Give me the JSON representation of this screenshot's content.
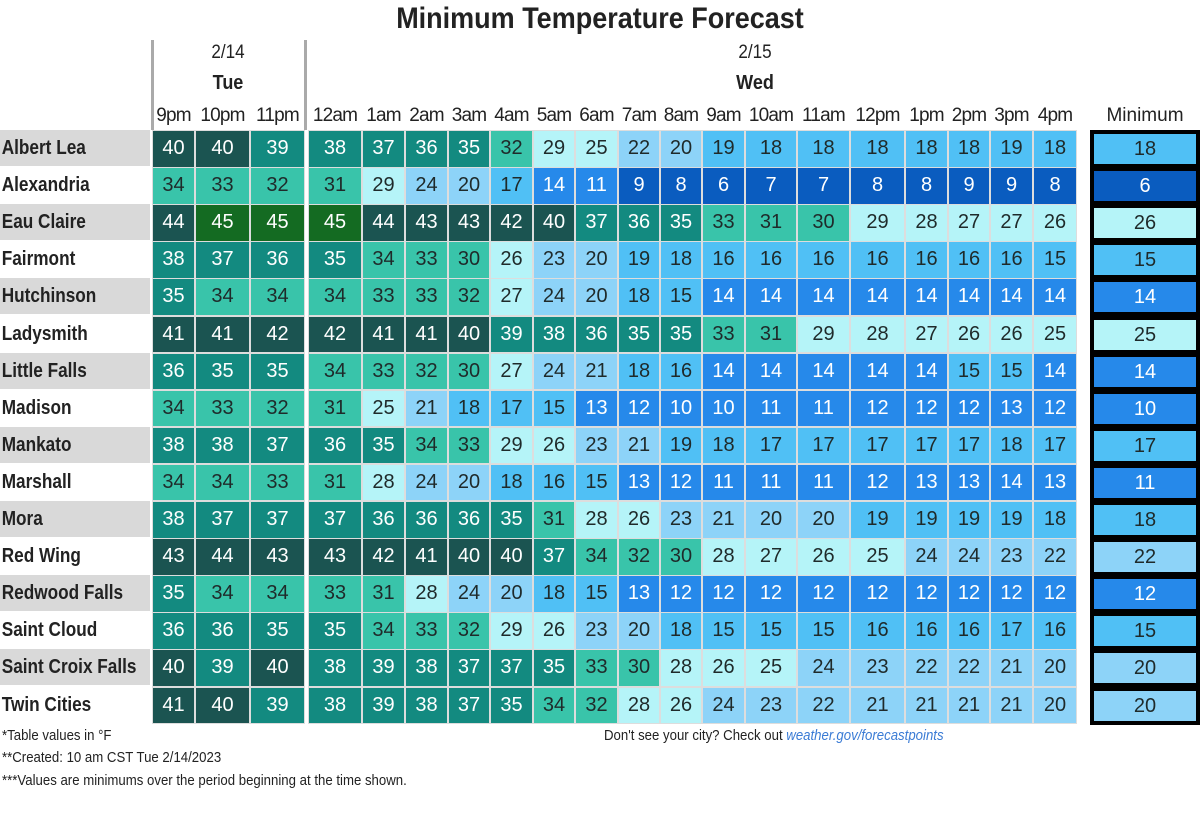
{
  "chart_data": {
    "type": "heatmap",
    "title": "Minimum Temperature Forecast",
    "dates": [
      {
        "date": "2/14",
        "day": "Tue"
      },
      {
        "date": "2/15",
        "day": "Wed"
      }
    ],
    "columns": [
      "9pm",
      "10pm",
      "11pm",
      "12am",
      "1am",
      "2am",
      "3am",
      "4am",
      "5am",
      "6am",
      "7am",
      "8am",
      "9am",
      "10am",
      "11am",
      "12pm",
      "1pm",
      "2pm",
      "3pm",
      "4pm"
    ],
    "minimum_header": "Minimum",
    "rows": [
      {
        "city": "Albert Lea",
        "values": [
          40,
          40,
          39,
          38,
          37,
          36,
          35,
          32,
          29,
          25,
          22,
          20,
          19,
          18,
          18,
          18,
          18,
          18,
          19,
          18
        ],
        "minimum": 18
      },
      {
        "city": "Alexandria",
        "values": [
          34,
          33,
          32,
          31,
          29,
          24,
          20,
          17,
          14,
          11,
          9,
          8,
          6,
          7,
          7,
          8,
          8,
          9,
          9,
          8
        ],
        "minimum": 6
      },
      {
        "city": "Eau Claire",
        "values": [
          44,
          45,
          45,
          45,
          44,
          43,
          43,
          42,
          40,
          37,
          36,
          35,
          33,
          31,
          30,
          29,
          28,
          27,
          27,
          26
        ],
        "minimum": 26
      },
      {
        "city": "Fairmont",
        "values": [
          38,
          37,
          36,
          35,
          34,
          33,
          30,
          26,
          23,
          20,
          19,
          18,
          16,
          16,
          16,
          16,
          16,
          16,
          16,
          15
        ],
        "minimum": 15
      },
      {
        "city": "Hutchinson",
        "values": [
          35,
          34,
          34,
          34,
          33,
          33,
          32,
          27,
          24,
          20,
          18,
          15,
          14,
          14,
          14,
          14,
          14,
          14,
          14,
          14
        ],
        "minimum": 14
      },
      {
        "city": "Ladysmith",
        "values": [
          41,
          41,
          42,
          42,
          41,
          41,
          40,
          39,
          38,
          36,
          35,
          35,
          33,
          31,
          29,
          28,
          27,
          26,
          26,
          25
        ],
        "minimum": 25
      },
      {
        "city": "Little Falls",
        "values": [
          36,
          35,
          35,
          34,
          33,
          32,
          30,
          27,
          24,
          21,
          18,
          16,
          14,
          14,
          14,
          14,
          14,
          15,
          15,
          14
        ],
        "minimum": 14
      },
      {
        "city": "Madison",
        "values": [
          34,
          33,
          32,
          31,
          25,
          21,
          18,
          17,
          15,
          13,
          12,
          10,
          10,
          11,
          11,
          12,
          12,
          12,
          13,
          12
        ],
        "minimum": 10
      },
      {
        "city": "Mankato",
        "values": [
          38,
          38,
          37,
          36,
          35,
          34,
          33,
          29,
          26,
          23,
          21,
          19,
          18,
          17,
          17,
          17,
          17,
          17,
          18,
          17
        ],
        "minimum": 17
      },
      {
        "city": "Marshall",
        "values": [
          34,
          34,
          33,
          31,
          28,
          24,
          20,
          18,
          16,
          15,
          13,
          12,
          11,
          11,
          11,
          12,
          13,
          13,
          14,
          13
        ],
        "minimum": 11
      },
      {
        "city": "Mora",
        "values": [
          38,
          37,
          37,
          37,
          36,
          36,
          36,
          35,
          31,
          28,
          26,
          23,
          21,
          20,
          20,
          19,
          19,
          19,
          19,
          18
        ],
        "minimum": 18
      },
      {
        "city": "Red Wing",
        "values": [
          43,
          44,
          43,
          43,
          42,
          41,
          40,
          40,
          37,
          34,
          32,
          30,
          28,
          27,
          26,
          25,
          24,
          24,
          23,
          22
        ],
        "minimum": 22
      },
      {
        "city": "Redwood Falls",
        "values": [
          35,
          34,
          34,
          33,
          31,
          28,
          24,
          20,
          18,
          15,
          13,
          12,
          12,
          12,
          12,
          12,
          12,
          12,
          12,
          12
        ],
        "minimum": 12
      },
      {
        "city": "Saint Cloud",
        "values": [
          36,
          36,
          35,
          35,
          34,
          33,
          32,
          29,
          26,
          23,
          20,
          18,
          15,
          15,
          15,
          16,
          16,
          16,
          17,
          16
        ],
        "minimum": 15
      },
      {
        "city": "Saint Croix Falls",
        "values": [
          40,
          39,
          40,
          38,
          39,
          38,
          37,
          37,
          35,
          33,
          30,
          28,
          26,
          25,
          24,
          23,
          22,
          22,
          21,
          20
        ],
        "minimum": 20
      },
      {
        "city": "Twin Cities",
        "values": [
          41,
          40,
          39,
          38,
          39,
          38,
          37,
          35,
          34,
          32,
          28,
          26,
          24,
          23,
          22,
          21,
          21,
          21,
          21,
          20
        ],
        "minimum": 20
      }
    ],
    "color_scale": [
      {
        "min": 45,
        "color": "#146b22",
        "text": "#ffffff"
      },
      {
        "min": 40,
        "color": "#1b5451",
        "text": "#ffffff"
      },
      {
        "min": 35,
        "color": "#138a80",
        "text": "#ffffff"
      },
      {
        "min": 30,
        "color": "#39c4aa",
        "text": "#1f2a2a"
      },
      {
        "min": 25,
        "color": "#b5f4f8",
        "text": "#1f2a2a"
      },
      {
        "min": 20,
        "color": "#8dd3f8",
        "text": "#1f2a2a"
      },
      {
        "min": 15,
        "color": "#50c0f5",
        "text": "#1f2a2a"
      },
      {
        "min": 10,
        "color": "#2689ea",
        "text": "#ffffff"
      },
      {
        "min": 0,
        "color": "#0a5cbf",
        "text": "#ffffff"
      }
    ],
    "name_stripe_color": "#d9d9d9"
  },
  "footer": {
    "note1": "*Table values in °F",
    "note2": "**Created: 10 am CST Tue 2/14/2023",
    "note3": "***Values are minimums over the period beginning at the time shown.",
    "city_prompt": "Don't see your city? Check out ",
    "city_link": "weather.gov/forecastpoints"
  }
}
